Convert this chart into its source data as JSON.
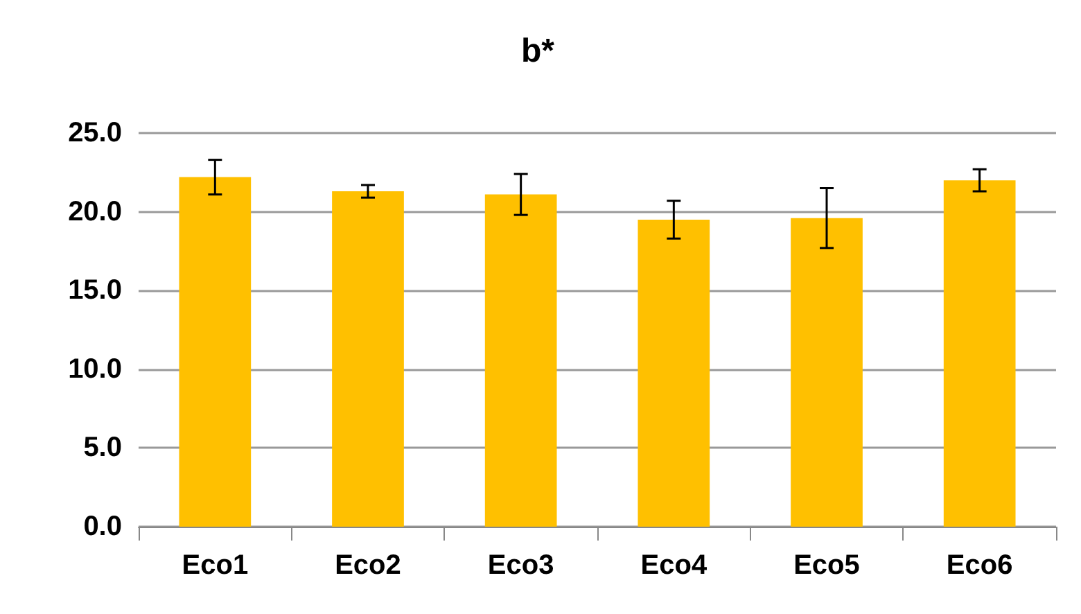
{
  "chart_data": {
    "type": "bar",
    "title": "b*",
    "categories": [
      "Eco1",
      "Eco2",
      "Eco3",
      "Eco4",
      "Eco5",
      "Eco6"
    ],
    "values": [
      22.2,
      21.3,
      21.1,
      19.5,
      19.6,
      22.0
    ],
    "errors": [
      1.1,
      0.4,
      1.3,
      1.2,
      1.9,
      0.7
    ],
    "color": "#ffc000",
    "ylim": [
      0,
      25
    ],
    "yticks": [
      {
        "value": 0,
        "label": "0.0"
      },
      {
        "value": 5,
        "label": "5.0"
      },
      {
        "value": 10,
        "label": "10.0"
      },
      {
        "value": 15,
        "label": "15.0"
      },
      {
        "value": 20,
        "label": "20.0"
      },
      {
        "value": 25,
        "label": "25.0"
      }
    ],
    "grid": "y"
  }
}
